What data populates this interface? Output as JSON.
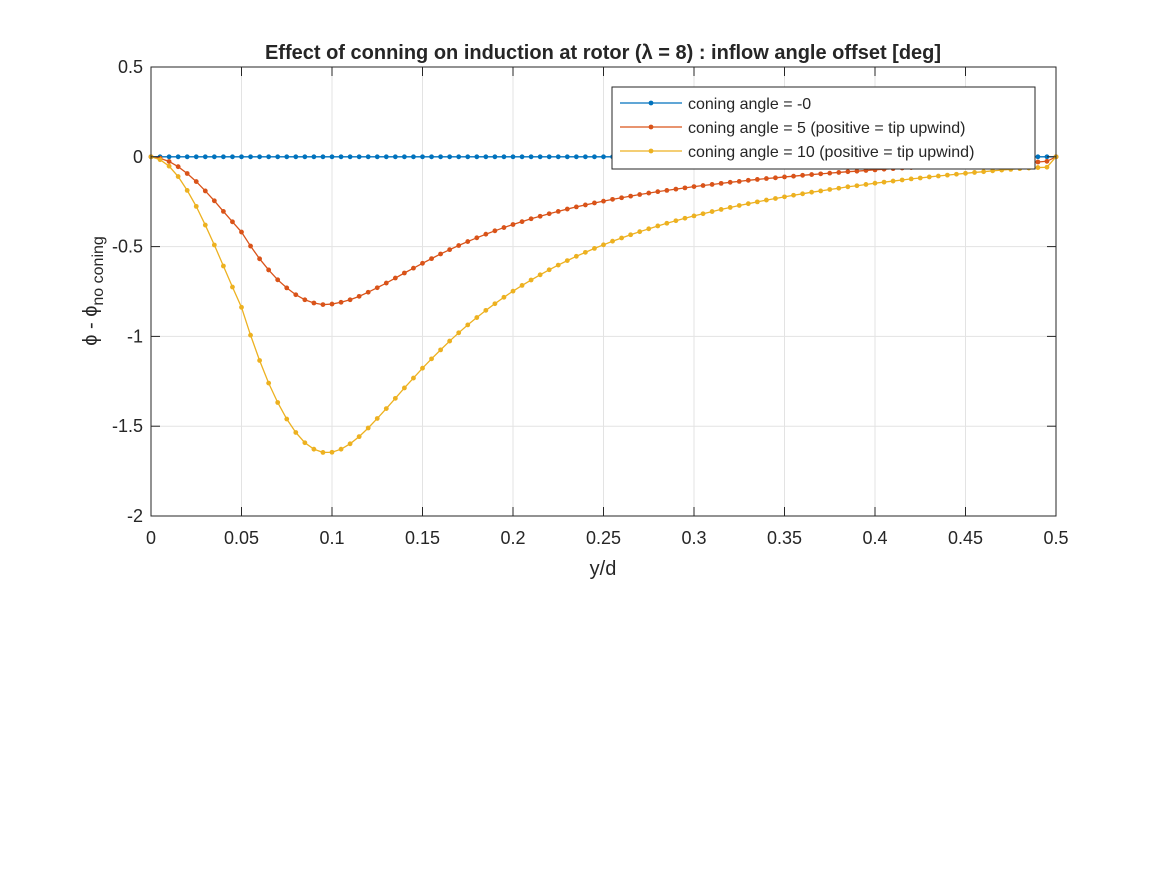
{
  "chart_data": {
    "type": "line",
    "title": "Effect of conning on induction at rotor (λ = 8) : inflow angle offset [deg]",
    "xlabel": "y/d",
    "ylabel": {
      "main": "ϕ - ϕ",
      "subscript": "no coning"
    },
    "xlim": [
      0,
      0.5
    ],
    "ylim": [
      -2,
      0.5
    ],
    "xticks": [
      0,
      0.05,
      0.1,
      0.15,
      0.2,
      0.25,
      0.3,
      0.35,
      0.4,
      0.45,
      0.5
    ],
    "xtick_labels": [
      "0",
      "0.05",
      "0.1",
      "0.15",
      "0.2",
      "0.25",
      "0.3",
      "0.35",
      "0.4",
      "0.45",
      "0.5"
    ],
    "yticks": [
      -2,
      -1.5,
      -1,
      -0.5,
      0,
      0.5
    ],
    "ytick_labels": [
      "-2",
      "-1.5",
      "-1",
      "-0.5",
      "0",
      "0.5"
    ],
    "grid": true,
    "legend_position": "top-right",
    "x": [
      0.0,
      0.005,
      0.01,
      0.015,
      0.02,
      0.025,
      0.03,
      0.035,
      0.04,
      0.045,
      0.05,
      0.055,
      0.06,
      0.065,
      0.07,
      0.075,
      0.08,
      0.085,
      0.09,
      0.095,
      0.1,
      0.105,
      0.11,
      0.115,
      0.12,
      0.125,
      0.13,
      0.135,
      0.14,
      0.145,
      0.15,
      0.155,
      0.16,
      0.165,
      0.17,
      0.175,
      0.18,
      0.185,
      0.19,
      0.195,
      0.2,
      0.205,
      0.21,
      0.215,
      0.22,
      0.225,
      0.23,
      0.235,
      0.24,
      0.245,
      0.25,
      0.255,
      0.26,
      0.265,
      0.27,
      0.275,
      0.28,
      0.285,
      0.29,
      0.295,
      0.3,
      0.305,
      0.31,
      0.315,
      0.32,
      0.325,
      0.33,
      0.335,
      0.34,
      0.345,
      0.35,
      0.355,
      0.36,
      0.365,
      0.37,
      0.375,
      0.38,
      0.385,
      0.39,
      0.395,
      0.4,
      0.405,
      0.41,
      0.415,
      0.42,
      0.425,
      0.43,
      0.435,
      0.44,
      0.445,
      0.45,
      0.455,
      0.46,
      0.465,
      0.47,
      0.475,
      0.48,
      0.485,
      0.49,
      0.495,
      0.5
    ],
    "series": [
      {
        "name": "coning angle = -0",
        "color": "#0072BD",
        "values": [
          0,
          0,
          0,
          0,
          0,
          0,
          0,
          0,
          0,
          0,
          0,
          0,
          0,
          0,
          0,
          0,
          0,
          0,
          0,
          0,
          0,
          0,
          0,
          0,
          0,
          0,
          0,
          0,
          0,
          0,
          0,
          0,
          0,
          0,
          0,
          0,
          0,
          0,
          0,
          0,
          0,
          0,
          0,
          0,
          0,
          0,
          0,
          0,
          0,
          0,
          0,
          0,
          0,
          0,
          0,
          0,
          0,
          0,
          0,
          0,
          0,
          0,
          0,
          0,
          0,
          0,
          0,
          0,
          0,
          0,
          0,
          0,
          0,
          0,
          0,
          0,
          0,
          0,
          0,
          0,
          0,
          0,
          0,
          0,
          0,
          0,
          0,
          0,
          0,
          0,
          0,
          0,
          0,
          0,
          0,
          0,
          0,
          0,
          0,
          0,
          0
        ]
      },
      {
        "name": "coning angle = 5 (positive = tip upwind)",
        "color": "#D95319",
        "values": [
          0,
          -0.008,
          -0.026,
          -0.055,
          -0.093,
          -0.138,
          -0.19,
          -0.245,
          -0.304,
          -0.362,
          -0.419,
          -0.497,
          -0.568,
          -0.63,
          -0.685,
          -0.73,
          -0.768,
          -0.796,
          -0.814,
          -0.823,
          -0.82,
          -0.81,
          -0.796,
          -0.777,
          -0.754,
          -0.729,
          -0.703,
          -0.675,
          -0.647,
          -0.62,
          -0.593,
          -0.567,
          -0.541,
          -0.517,
          -0.494,
          -0.472,
          -0.451,
          -0.431,
          -0.412,
          -0.394,
          -0.377,
          -0.361,
          -0.345,
          -0.331,
          -0.317,
          -0.304,
          -0.291,
          -0.279,
          -0.268,
          -0.257,
          -0.247,
          -0.237,
          -0.228,
          -0.219,
          -0.21,
          -0.202,
          -0.194,
          -0.187,
          -0.18,
          -0.173,
          -0.166,
          -0.16,
          -0.154,
          -0.148,
          -0.142,
          -0.137,
          -0.131,
          -0.126,
          -0.121,
          -0.117,
          -0.112,
          -0.108,
          -0.103,
          -0.099,
          -0.095,
          -0.091,
          -0.087,
          -0.083,
          -0.08,
          -0.076,
          -0.073,
          -0.069,
          -0.066,
          -0.063,
          -0.06,
          -0.057,
          -0.054,
          -0.051,
          -0.048,
          -0.046,
          -0.043,
          -0.041,
          -0.038,
          -0.036,
          -0.034,
          -0.032,
          -0.03,
          -0.029,
          -0.029,
          -0.025,
          0
        ]
      },
      {
        "name": "coning angle = 10 (positive = tip upwind)",
        "color": "#EDB120",
        "values": [
          0,
          -0.016,
          -0.052,
          -0.11,
          -0.187,
          -0.276,
          -0.38,
          -0.491,
          -0.608,
          -0.725,
          -0.838,
          -0.993,
          -1.134,
          -1.26,
          -1.368,
          -1.46,
          -1.535,
          -1.592,
          -1.628,
          -1.646,
          -1.645,
          -1.628,
          -1.598,
          -1.558,
          -1.51,
          -1.457,
          -1.402,
          -1.345,
          -1.287,
          -1.232,
          -1.177,
          -1.125,
          -1.075,
          -1.026,
          -0.98,
          -0.936,
          -0.895,
          -0.855,
          -0.818,
          -0.782,
          -0.748,
          -0.716,
          -0.686,
          -0.657,
          -0.629,
          -0.603,
          -0.578,
          -0.554,
          -0.532,
          -0.51,
          -0.49,
          -0.47,
          -0.452,
          -0.434,
          -0.417,
          -0.401,
          -0.385,
          -0.37,
          -0.356,
          -0.342,
          -0.329,
          -0.317,
          -0.305,
          -0.293,
          -0.282,
          -0.271,
          -0.261,
          -0.251,
          -0.241,
          -0.232,
          -0.223,
          -0.214,
          -0.206,
          -0.197,
          -0.19,
          -0.182,
          -0.175,
          -0.167,
          -0.161,
          -0.154,
          -0.147,
          -0.141,
          -0.135,
          -0.129,
          -0.123,
          -0.118,
          -0.112,
          -0.107,
          -0.102,
          -0.097,
          -0.092,
          -0.087,
          -0.083,
          -0.078,
          -0.074,
          -0.07,
          -0.066,
          -0.063,
          -0.06,
          -0.058,
          0
        ]
      }
    ]
  }
}
